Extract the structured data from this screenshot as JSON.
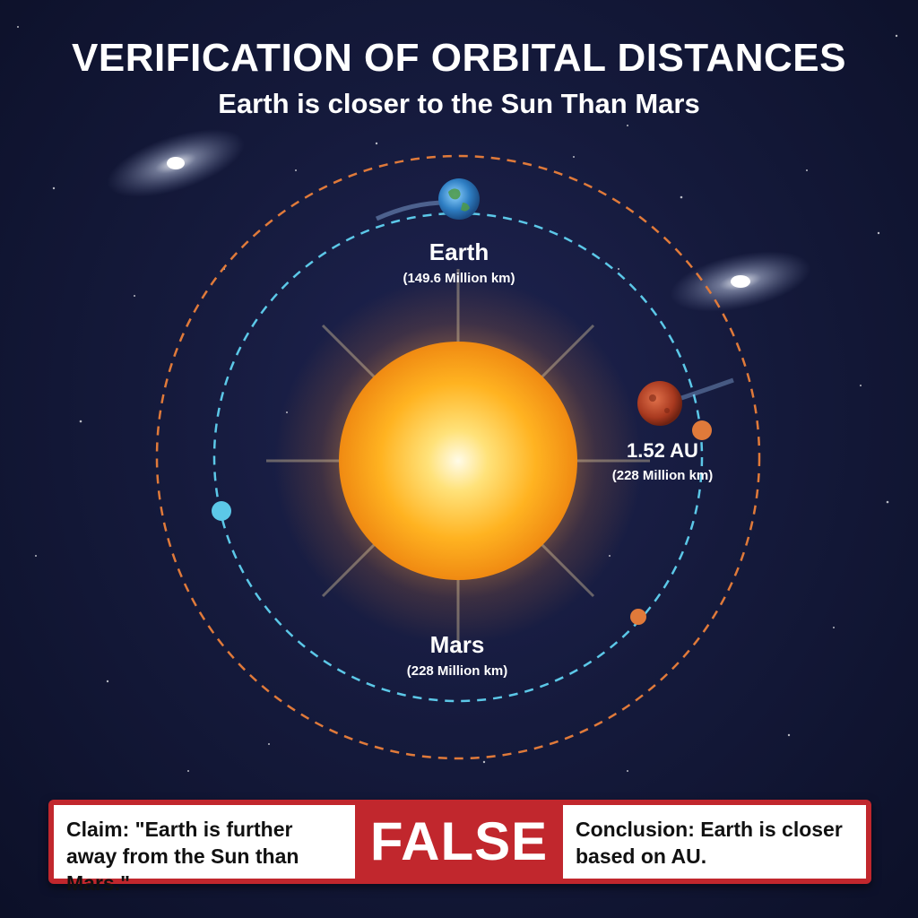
{
  "title": "VERIFICATION OF ORBITAL DISTANCES",
  "subtitle": "Earth is closer to the Sun Than Mars",
  "earth": {
    "name": "Earth",
    "distance": "(149.6 Million km)"
  },
  "mars": {
    "name": "Mars",
    "distance": "(228 Million km)",
    "au_label": "1.52 AU",
    "au_distance": "(228 Million km)"
  },
  "verdict": {
    "claim": "Claim: \"Earth is further away from the Sun than Mars.\"",
    "word": "FALSE",
    "conclusion": "Conclusion: Earth is closer based on AU."
  },
  "colors": {
    "earth_orbit": "#5cc8e8",
    "mars_orbit": "#e07a3a",
    "sun": "#ffb321",
    "verdict_red": "#c1272d"
  }
}
